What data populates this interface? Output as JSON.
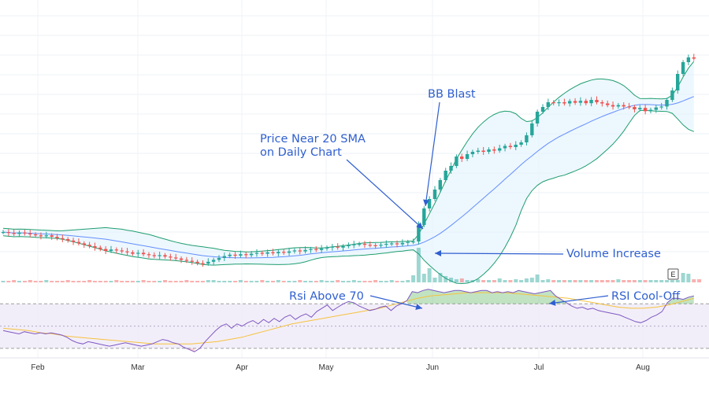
{
  "chart_data": {
    "type": "line",
    "x_tick_labels": [
      "Feb",
      "Mar",
      "Apr",
      "May",
      "Jun",
      "Jul",
      "Aug"
    ],
    "price_series": {
      "close": [
        100,
        99.6,
        99.2,
        99.8,
        99.4,
        99.0,
        98.6,
        98.2,
        98.6,
        98.0,
        97.4,
        97.0,
        96.4,
        95.8,
        95.2,
        94.6,
        94.0,
        93.4,
        92.8,
        92.0,
        92.6,
        92.2,
        91.8,
        91.4,
        90.8,
        91.2,
        90.6,
        90.2,
        89.8,
        90.2,
        89.6,
        89.2,
        88.8,
        88.2,
        87.8,
        87.4,
        86.8,
        86.6,
        87.4,
        88.2,
        89.0,
        89.8,
        90.4,
        90.0,
        90.6,
        90.2,
        90.8,
        91.2,
        90.8,
        91.4,
        91.0,
        91.6,
        91.2,
        91.8,
        92.2,
        91.8,
        92.4,
        92.8,
        92.4,
        93.0,
        93.4,
        93.8,
        93.4,
        94.0,
        94.4,
        94.8,
        95.0,
        94.6,
        94.4,
        94.2,
        94.6,
        95.0,
        95.2,
        94.8,
        95.4,
        95.8,
        96.0,
        103,
        110,
        114,
        118,
        122,
        126,
        128,
        132,
        131,
        133,
        134,
        134.5,
        134,
        135,
        134.5,
        135.5,
        136.5,
        136,
        137,
        138,
        141,
        146,
        151,
        153,
        155,
        154.6,
        155,
        154.5,
        155.5,
        154.8,
        155.6,
        154.6,
        156,
        155,
        154.5,
        153.8,
        153.2,
        153.8,
        153.2,
        153.0,
        152.0,
        152.6,
        151.2,
        151.8,
        152.8,
        153.2,
        156,
        160,
        167,
        172,
        174,
        173.5
      ],
      "y_range": [
        80,
        185
      ]
    },
    "volume_series": {
      "values": [
        2,
        2,
        3,
        2,
        2,
        3,
        2,
        2,
        3,
        2,
        2,
        2,
        3,
        2,
        2,
        2,
        3,
        2,
        2,
        2,
        2,
        3,
        2,
        2,
        2,
        2,
        3,
        2,
        2,
        2,
        3,
        2,
        2,
        2,
        3,
        2,
        2,
        2,
        3,
        3,
        2,
        2,
        2,
        2,
        3,
        2,
        2,
        2,
        3,
        2,
        2,
        3,
        2,
        2,
        2,
        3,
        2,
        2,
        2,
        3,
        2,
        2,
        3,
        2,
        2,
        3,
        2,
        2,
        2,
        3,
        2,
        2,
        3,
        2,
        2,
        3,
        9,
        44,
        11,
        18,
        6,
        12,
        8,
        6,
        4,
        5,
        3,
        3,
        4,
        3,
        3,
        3,
        5,
        3,
        3,
        4,
        3,
        5,
        6,
        10,
        3,
        4,
        3,
        3,
        3,
        3,
        3,
        3,
        3,
        3,
        3,
        3,
        3,
        3,
        4,
        3,
        3,
        3,
        3,
        3,
        3,
        3,
        3,
        3,
        3,
        3,
        12,
        11,
        4,
        4
      ],
      "y_range": [
        0,
        48
      ]
    },
    "rsi_series": {
      "values": [
        46,
        45,
        44,
        43,
        45,
        44,
        43,
        44,
        43,
        44,
        43,
        42,
        40,
        37,
        35,
        34,
        36,
        35,
        34,
        33,
        32,
        33,
        34,
        35,
        34,
        33,
        32,
        33,
        34,
        36,
        38,
        37,
        35,
        34,
        31,
        29,
        27,
        30,
        36,
        41,
        46,
        50,
        52,
        48,
        52,
        50,
        53,
        55,
        52,
        56,
        53,
        57,
        54,
        58,
        60,
        56,
        59,
        61,
        58,
        63,
        66,
        69,
        64,
        67,
        70,
        72,
        71,
        68,
        66,
        64,
        65,
        67,
        68,
        64,
        68,
        70,
        73,
        81,
        80,
        82,
        83,
        82,
        81,
        80,
        81,
        82,
        82,
        81,
        80,
        81,
        82,
        82,
        80,
        81,
        80,
        81,
        80,
        82,
        81,
        80,
        79,
        80,
        81,
        82,
        77,
        74,
        71,
        68,
        66,
        67,
        65,
        66,
        64,
        63,
        62,
        61,
        60,
        58,
        56,
        54,
        53,
        55,
        58,
        60,
        63,
        71,
        75,
        75,
        74,
        76,
        77
      ],
      "ma_values": [
        48,
        47,
        46,
        44,
        43,
        41,
        40,
        39,
        38,
        37,
        36,
        35,
        34,
        34,
        34,
        34,
        35,
        36,
        38,
        40,
        43,
        46,
        49,
        52,
        54,
        56,
        58,
        60,
        62,
        64,
        66,
        69,
        72,
        75,
        77,
        78,
        79,
        80,
        80,
        80,
        80,
        79,
        78,
        77,
        76,
        75,
        73,
        71,
        69,
        67,
        66,
        66,
        67,
        69,
        72,
        75
      ],
      "y_range": [
        25,
        85
      ],
      "levels": [
        70,
        30
      ]
    }
  },
  "annotations": {
    "bb_blast": "BB Blast",
    "price_near_line1": "Price Near 20 SMA",
    "price_near_line2": "on Daily Chart",
    "volume_increase": "Volume Increase",
    "rsi_above": "Rsi Above 70",
    "rsi_cool": "RSI Cool-Off"
  },
  "earnings_badge": "E",
  "colors": {
    "bull": "#26a69a",
    "bear": "#ef5350",
    "band": "#1e9e6e",
    "band_fill": "#e3f2fd",
    "basis": "#2962ff",
    "rsi_line": "#7e57c2",
    "rsi_ma": "#f6c23e",
    "annotation": "#2f5fd0"
  }
}
